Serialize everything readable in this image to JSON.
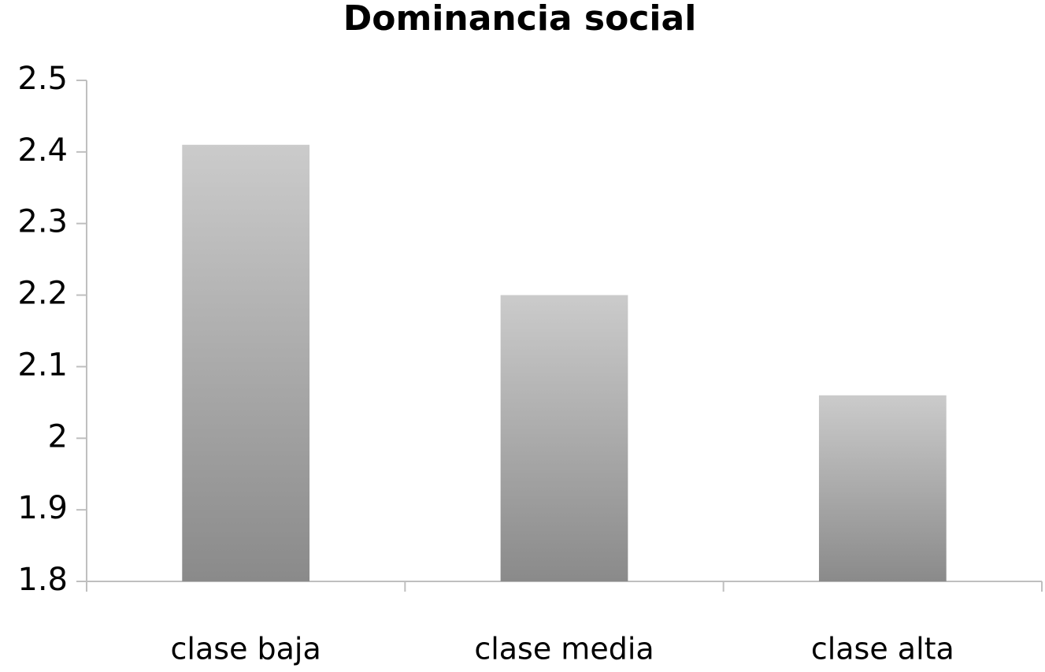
{
  "chart_data": {
    "type": "bar",
    "title": "Dominancia social",
    "categories": [
      "clase baja",
      "clase media",
      "clase alta"
    ],
    "values": [
      2.41,
      2.2,
      2.06
    ],
    "ylim": [
      1.8,
      2.5
    ],
    "yticks": [
      1.8,
      1.9,
      2,
      2.1,
      2.2,
      2.3,
      2.4,
      2.5
    ],
    "grid": false
  }
}
